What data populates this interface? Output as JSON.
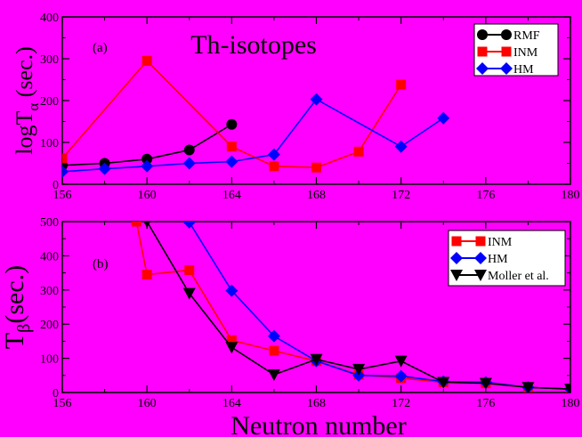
{
  "colors": {
    "background": "#ff00ff",
    "rmf": "#000000",
    "inm": "#ff0000",
    "hm": "#0000ff",
    "moller": "#000000"
  },
  "figure": {
    "xlabel": "Neutron number"
  },
  "chart_data": [
    {
      "type": "line",
      "panel_label": "(a)",
      "title": "Th-isotopes",
      "ylabel_main": "logT",
      "ylabel_sub": "α",
      "ylabel_tail": " (sec.)",
      "xlim": [
        156,
        180
      ],
      "ylim": [
        0,
        400
      ],
      "xticks": [
        156,
        160,
        164,
        168,
        172,
        176,
        180
      ],
      "yticks": [
        0,
        100,
        200,
        300,
        400
      ],
      "legend_position": "top-right",
      "series": [
        {
          "name": "RMF",
          "marker": "circle",
          "color": "#000000",
          "x": [
            156,
            158,
            160,
            162,
            164
          ],
          "y": [
            45,
            50,
            60,
            82,
            143
          ]
        },
        {
          "name": "INM",
          "marker": "square",
          "color": "#ff0000",
          "x": [
            156,
            160,
            164,
            166,
            168,
            170,
            172
          ],
          "y": [
            62,
            295,
            90,
            43,
            40,
            78,
            238
          ]
        },
        {
          "name": "HM",
          "marker": "diamond",
          "color": "#0000ff",
          "x": [
            156,
            158,
            160,
            162,
            164,
            166,
            168,
            172,
            174
          ],
          "y": [
            30,
            37,
            43,
            50,
            54,
            71,
            203,
            90,
            158
          ]
        }
      ]
    },
    {
      "type": "line",
      "panel_label": "(b)",
      "ylabel_main": "T",
      "ylabel_sub": "β",
      "ylabel_tail": "(sec.)",
      "xlim": [
        156,
        180
      ],
      "ylim": [
        0,
        500
      ],
      "xticks": [
        156,
        160,
        164,
        168,
        172,
        176,
        180
      ],
      "yticks": [
        0,
        100,
        200,
        300,
        400,
        500
      ],
      "legend_position": "top-right",
      "series": [
        {
          "name": "INM",
          "marker": "square",
          "color": "#ff0000",
          "x": [
            159.5,
            160,
            162,
            164,
            166,
            168,
            170,
            172,
            174,
            176,
            178,
            180
          ],
          "y": [
            500,
            345,
            358,
            153,
            122,
            92,
            52,
            42,
            30,
            27,
            15,
            10
          ]
        },
        {
          "name": "HM",
          "marker": "diamond",
          "color": "#0000ff",
          "x": [
            162,
            164,
            166,
            168,
            170,
            172,
            174,
            176,
            178,
            180
          ],
          "y": [
            498,
            298,
            165,
            92,
            50,
            48,
            32,
            30,
            15,
            10
          ]
        },
        {
          "name": "Moller et al.",
          "marker": "triangle-down",
          "color": "#000000",
          "x": [
            160,
            162,
            164,
            166,
            168,
            170,
            172,
            174,
            176,
            178,
            180
          ],
          "y": [
            500,
            290,
            132,
            52,
            97,
            68,
            92,
            30,
            27,
            15,
            10
          ]
        }
      ]
    }
  ]
}
